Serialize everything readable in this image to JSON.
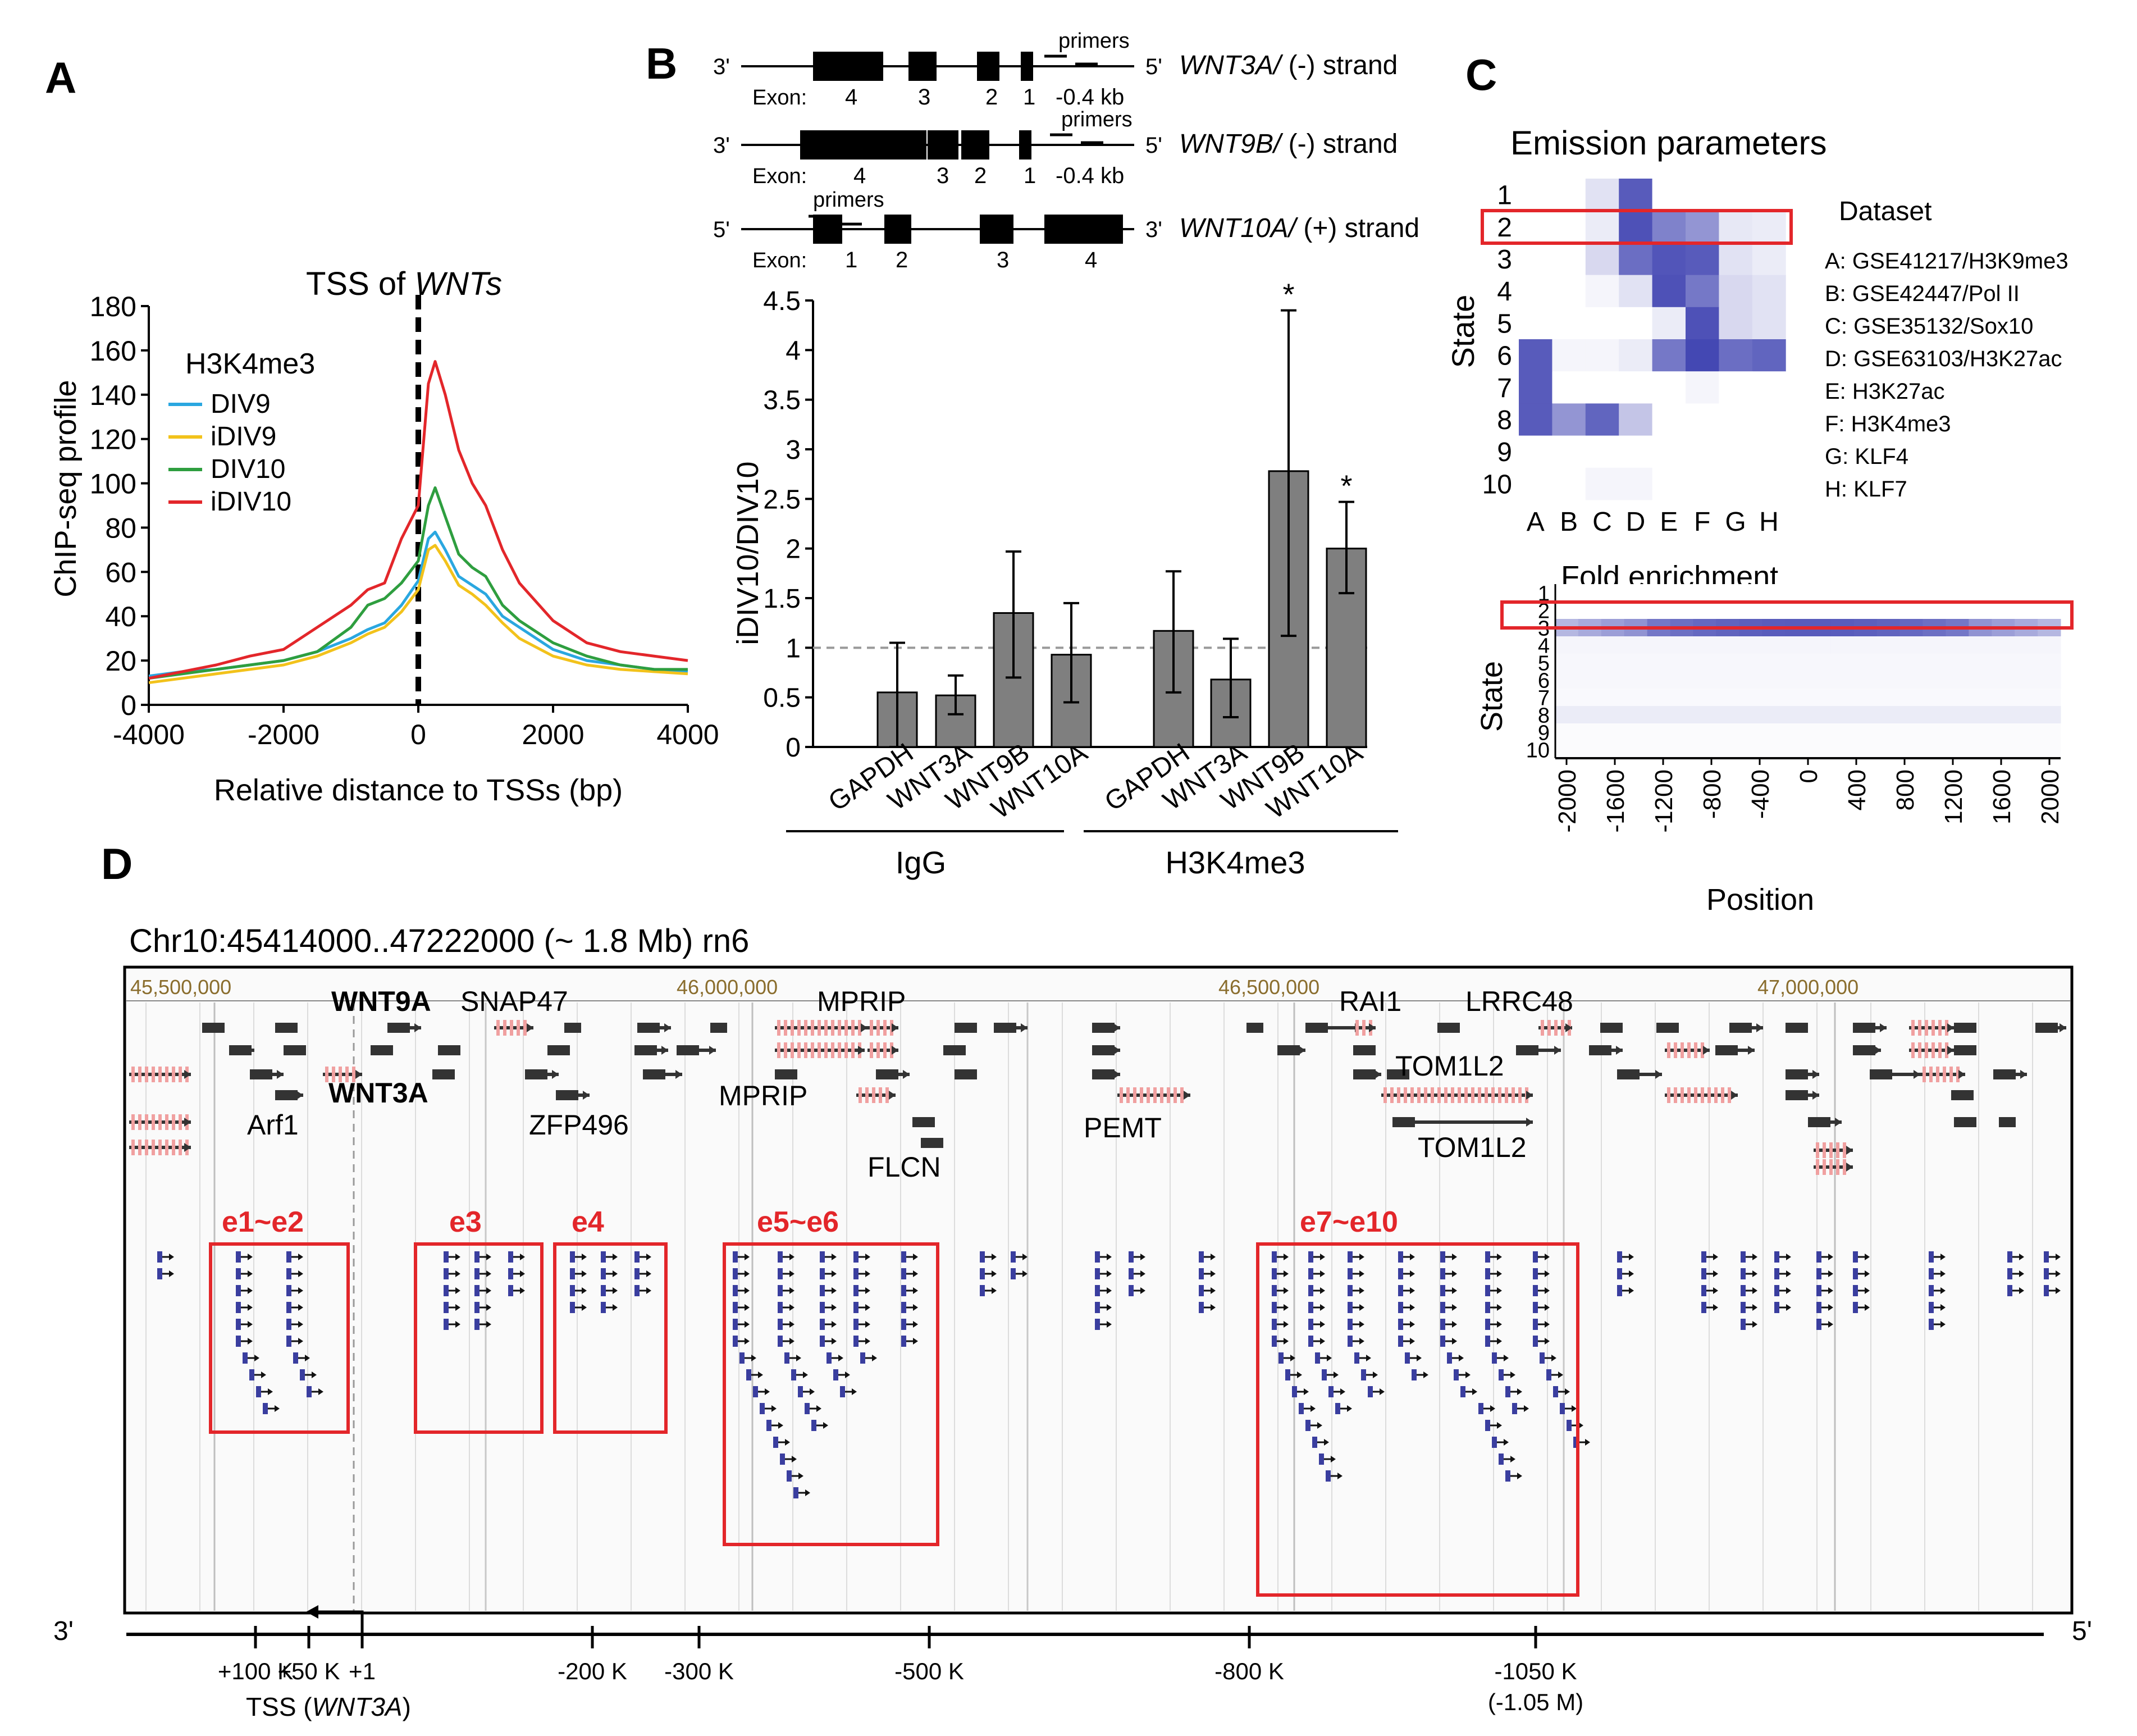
{
  "panels": {
    "A": "A",
    "B": "B",
    "C": "C",
    "D": "D"
  },
  "panelA": {
    "title_pre": "TSS of ",
    "title_ital": "WNTs",
    "legend_title": "H3K4me3",
    "ylabel": "ChIP-seq profile",
    "xlabel": "Relative distance to TSSs (bp)"
  },
  "panelB": {
    "genes": [
      {
        "five": "5'",
        "three": "3'",
        "name": "WNT3A/",
        "strand": "(-) strand",
        "exon_label": "Exon:",
        "exons": [
          "4",
          "3",
          "2",
          "1"
        ],
        "primers": "primers",
        "dist": "-0.4 kb"
      },
      {
        "five": "5'",
        "three": "3'",
        "name": "WNT9B/",
        "strand": "(-) strand",
        "exon_label": "Exon:",
        "exons": [
          "4",
          "3",
          "2",
          "1"
        ],
        "primers": "primers",
        "dist": "-0.4 kb"
      },
      {
        "five": "5'",
        "three": "3'",
        "name": "WNT10A/",
        "strand": "(+) strand",
        "exon_label": "Exon:",
        "exons": [
          "1",
          "2",
          "3",
          "4"
        ],
        "primers": "primers",
        "dist": ""
      }
    ],
    "ylabel": "iDIV10/DIV10",
    "groups": [
      "IgG",
      "H3K4me3"
    ],
    "star": "*"
  },
  "panelC": {
    "title": "Emission parameters",
    "dataset_title": "Dataset",
    "datasets": [
      "A: GSE41217/H3K9me3",
      "B: GSE42447/Pol II",
      "C: GSE35132/Sox10",
      "D: GSE63103/H3K27ac",
      "E: H3K27ac",
      "F: H3K4me3",
      "G: KLF4",
      "H: KLF7"
    ],
    "ylabel": "State",
    "fold_title": "Fold enrichment",
    "fold_ylabel": "State",
    "fold_xlabel": "Position"
  },
  "panelD": {
    "title": "Chr10:45414000..47222000 (~ 1.8 Mb)  rn6",
    "ruler": [
      "45,500,000",
      "46,000,000",
      "46,500,000",
      "47,000,000"
    ],
    "genes": [
      "WNT9A",
      "SNAP47",
      "MPRIP",
      "RAI1",
      "LRRC48",
      "Arf1",
      "WNT3A",
      "ZFP496",
      "MPRIP",
      "PEMT",
      "TOM1L2",
      "TOM1L2",
      "FLCN"
    ],
    "enhancers": [
      "e1~e2",
      "e3",
      "e4",
      "e5~e6",
      "e7~e10"
    ],
    "axis_left": "3'",
    "axis_right": "5'",
    "axis_ticks": [
      "+100 K",
      "+50 K",
      "+1",
      "-200 K",
      "-300 K",
      "-500 K",
      "-800 K",
      "-1050 K"
    ],
    "axis_sub": "(-1.05 M)",
    "tss_pre": "TSS (",
    "tss_ital": "WNT3A",
    "tss_post": ")"
  },
  "chart_data": [
    {
      "type": "line",
      "title": "TSS of WNTs",
      "xlabel": "Relative distance to TSSs (bp)",
      "ylabel": "ChIP-seq profile",
      "xlim": [
        -4000,
        4000
      ],
      "ylim": [
        0,
        180
      ],
      "x_ticks": [
        -4000,
        -2000,
        0,
        2000,
        4000
      ],
      "y_ticks": [
        0,
        20,
        40,
        60,
        80,
        100,
        120,
        140,
        160,
        180
      ],
      "x": [
        -4000,
        -3500,
        -3000,
        -2500,
        -2000,
        -1500,
        -1000,
        -750,
        -500,
        -250,
        0,
        150,
        250,
        400,
        600,
        800,
        1000,
        1250,
        1500,
        2000,
        2500,
        3000,
        3500,
        4000
      ],
      "series": [
        {
          "name": "DIV9",
          "color": "#2aa7e0",
          "values": [
            13,
            15,
            16,
            18,
            20,
            24,
            30,
            34,
            37,
            45,
            56,
            75,
            78,
            70,
            58,
            54,
            50,
            40,
            35,
            25,
            20,
            18,
            16,
            15
          ]
        },
        {
          "name": "iDIV9",
          "color": "#f2c21b",
          "values": [
            10,
            12,
            14,
            16,
            18,
            22,
            28,
            32,
            35,
            42,
            52,
            70,
            72,
            65,
            54,
            50,
            45,
            37,
            30,
            22,
            18,
            16,
            15,
            14
          ]
        },
        {
          "name": "DIV10",
          "color": "#2e9e3f",
          "values": [
            12,
            14,
            16,
            18,
            20,
            24,
            35,
            45,
            48,
            55,
            65,
            90,
            98,
            85,
            68,
            62,
            58,
            45,
            38,
            28,
            22,
            18,
            16,
            16
          ]
        },
        {
          "name": "iDIV10",
          "color": "#e3262a",
          "values": [
            12,
            15,
            18,
            22,
            25,
            35,
            45,
            52,
            55,
            75,
            90,
            145,
            155,
            140,
            115,
            100,
            90,
            70,
            55,
            38,
            28,
            24,
            22,
            20
          ]
        }
      ]
    },
    {
      "type": "bar",
      "ylabel": "iDIV10/DIV10",
      "ylim": [
        0,
        4.5
      ],
      "y_ticks": [
        0,
        0.5,
        1,
        1.5,
        2,
        2.5,
        3,
        3.5,
        4,
        4.5
      ],
      "reference_line": 1,
      "categories": [
        "GAPDH",
        "WNT3A",
        "WNT9B",
        "WNT10A",
        "GAPDH",
        "WNT3A",
        "WNT9B",
        "WNT10A"
      ],
      "groups": [
        "IgG",
        "IgG",
        "IgG",
        "IgG",
        "H3K4me3",
        "H3K4me3",
        "H3K4me3",
        "H3K4me3"
      ],
      "values": [
        0.55,
        0.52,
        1.35,
        0.93,
        1.17,
        0.68,
        2.78,
        2.0
      ],
      "err_low": [
        0.0,
        0.33,
        0.7,
        0.45,
        0.55,
        0.3,
        1.12,
        1.55
      ],
      "err_high": [
        1.05,
        0.72,
        1.97,
        1.45,
        1.77,
        1.09,
        4.4,
        2.47
      ],
      "significant": [
        false,
        false,
        false,
        false,
        false,
        false,
        true,
        true
      ]
    },
    {
      "type": "heatmap",
      "title": "Emission parameters",
      "ylabel": "State",
      "rows": [
        "1",
        "2",
        "3",
        "4",
        "5",
        "6",
        "7",
        "8",
        "9",
        "10"
      ],
      "cols": [
        "A",
        "B",
        "C",
        "D",
        "E",
        "F",
        "G",
        "H"
      ],
      "values": [
        [
          0,
          0,
          0.15,
          0.85,
          0,
          0,
          0,
          0
        ],
        [
          0,
          0,
          0.1,
          0.9,
          0.65,
          0.55,
          0.12,
          0.1
        ],
        [
          0,
          0,
          0.2,
          0.75,
          0.88,
          0.85,
          0.15,
          0.1
        ],
        [
          0,
          0,
          0.05,
          0.15,
          0.9,
          0.7,
          0.2,
          0.15
        ],
        [
          0,
          0,
          0,
          0,
          0.1,
          0.9,
          0.2,
          0.15
        ],
        [
          0.85,
          0.05,
          0.05,
          0.1,
          0.7,
          0.95,
          0.75,
          0.8
        ],
        [
          0.85,
          0,
          0,
          0,
          0,
          0.05,
          0,
          0
        ],
        [
          0.85,
          0.55,
          0.8,
          0.3,
          0,
          0,
          0,
          0
        ],
        [
          0,
          0,
          0,
          0,
          0,
          0,
          0,
          0
        ],
        [
          0,
          0,
          0.05,
          0.05,
          0,
          0,
          0,
          0
        ]
      ]
    },
    {
      "type": "heatmap",
      "title": "Fold enrichment",
      "xlabel": "Position",
      "ylabel": "State",
      "rows": [
        "1",
        "2",
        "3",
        "4",
        "5",
        "6",
        "7",
        "8",
        "9",
        "10"
      ],
      "x_ticks": [
        "-2000",
        "-1600",
        "-1200",
        "-800",
        "-400",
        "0",
        "400",
        "800",
        "1200",
        "1600",
        "2000"
      ],
      "row_values": [
        0,
        0,
        0.75,
        0.05,
        0.04,
        0.04,
        0.03,
        0.1,
        0.02,
        0.02
      ]
    }
  ]
}
